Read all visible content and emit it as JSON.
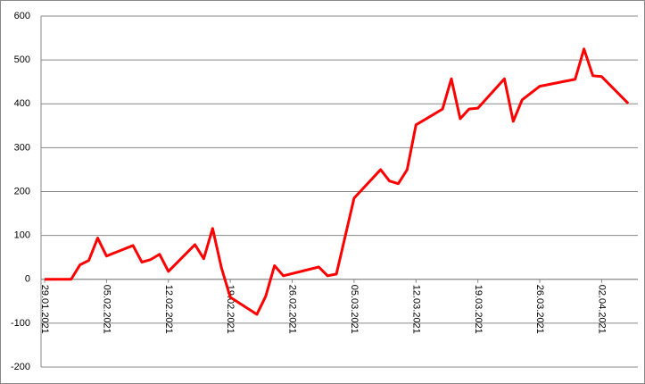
{
  "chart_data": {
    "type": "line",
    "x": [
      "29.01.2021",
      "01.02.2021",
      "02.02.2021",
      "03.02.2021",
      "04.02.2021",
      "05.02.2021",
      "08.02.2021",
      "09.02.2021",
      "10.02.2021",
      "11.02.2021",
      "12.02.2021",
      "15.02.2021",
      "16.02.2021",
      "17.02.2021",
      "18.02.2021",
      "19.02.2021",
      "22.02.2021",
      "23.02.2021",
      "24.02.2021",
      "25.02.2021",
      "01.03.2021",
      "02.03.2021",
      "03.03.2021",
      "05.03.2021",
      "08.03.2021",
      "09.03.2021",
      "10.03.2021",
      "11.03.2021",
      "12.03.2021",
      "15.03.2021",
      "16.03.2021",
      "17.03.2021",
      "18.03.2021",
      "19.03.2021",
      "22.03.2021",
      "23.03.2021",
      "24.03.2021",
      "26.03.2021",
      "30.03.2021",
      "31.03.2021",
      "01.04.2021",
      "02.04.2021",
      "05.04.2021"
    ],
    "series": [
      {
        "color": "#ff0000",
        "values": [
          0,
          0,
          33,
          43,
          94,
          53,
          77,
          39,
          45,
          57,
          18,
          79,
          47,
          116,
          26,
          -41,
          -80,
          -39,
          31,
          8,
          28,
          8,
          12,
          185,
          250,
          224,
          218,
          250,
          352,
          388,
          457,
          366,
          388,
          390,
          457,
          360,
          409,
          440,
          456,
          525,
          464,
          462,
          401
        ]
      }
    ],
    "xlim": [
      "29.01.2021",
      "07.04.2021"
    ],
    "xticks": [
      "29.01.2021",
      "05.02.2021",
      "12.02.2021",
      "19.02.2021",
      "26.02.2021",
      "05.03.2021",
      "12.03.2021",
      "19.03.2021",
      "26.03.2021",
      "02.04.2021"
    ],
    "ylim": [
      -200,
      600
    ],
    "yticks": [
      -200,
      -100,
      0,
      100,
      200,
      300,
      400,
      500,
      600
    ],
    "grid": true
  }
}
